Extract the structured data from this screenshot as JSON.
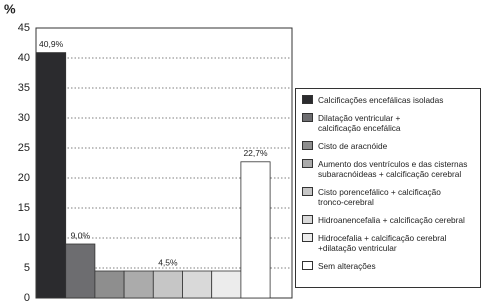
{
  "chart_data": {
    "type": "bar",
    "y_label": "%",
    "categories": [
      "Calcificações encefálicas isoladas",
      "Dilatação ventricular +\ncalcificação encefálica",
      "Cisto de aracnóide",
      "Aumento dos ventrículos e das cisternas\nsubaracnóideas + calcificação cerebral",
      "Cisto porencefálico + calcificação\ntronco-cerebral",
      "Hidroanencefalia + calcificação cerebral",
      "Hidrocefalia + calcificação cerebral\n+dilatação ventricular",
      "Sem alterações"
    ],
    "values": [
      40.9,
      9.0,
      4.5,
      4.5,
      4.5,
      4.5,
      4.5,
      22.7
    ],
    "value_labels": [
      "40,9%",
      "9,0%",
      null,
      null,
      "4,5%",
      null,
      null,
      "22,7%"
    ],
    "colors": [
      "#2b2b2e",
      "#6d6d70",
      "#8e8e8e",
      "#ababab",
      "#c6c6c6",
      "#d9d9d9",
      "#ececec",
      "#ffffff"
    ],
    "ylim": [
      0,
      45
    ],
    "yticks": [
      0,
      5,
      10,
      15,
      20,
      25,
      30,
      35,
      40,
      45
    ],
    "grid": true
  }
}
